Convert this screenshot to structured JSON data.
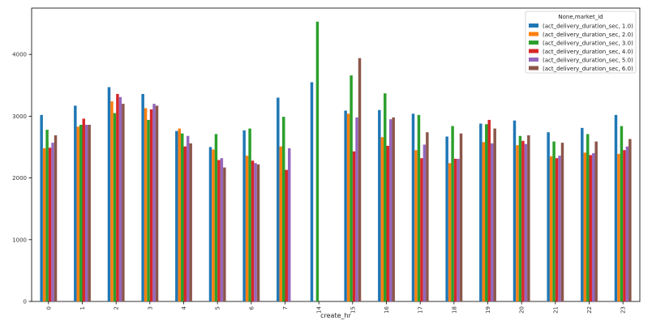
{
  "chart_data": {
    "type": "bar",
    "xlabel": "create_hr",
    "ylabel": "",
    "ylim": [
      0,
      4750
    ],
    "yticks": [
      0,
      1000,
      2000,
      3000,
      4000
    ],
    "grid": false,
    "legend_placement": "top-right",
    "legend_title": "None,market_id",
    "categories": [
      "0",
      "1",
      "2",
      "3",
      "4",
      "5",
      "6",
      "7",
      "14",
      "15",
      "16",
      "17",
      "18",
      "19",
      "20",
      "21",
      "22",
      "23"
    ],
    "series": [
      {
        "name": "(act_delivery_duration_sec, 1.0)",
        "color": "#1f77b4",
        "values": [
          3020,
          3170,
          3470,
          3360,
          2760,
          2500,
          2770,
          3300,
          3550,
          3090,
          3100,
          3040,
          2670,
          2880,
          2930,
          2740,
          2810,
          3020
        ]
      },
      {
        "name": "(act_delivery_duration_sec, 2.0)",
        "color": "#ff7f0e",
        "values": [
          2480,
          2830,
          3240,
          3130,
          2800,
          2460,
          2360,
          2510,
          null,
          3040,
          2660,
          2450,
          2240,
          2580,
          2530,
          2350,
          2410,
          2390
        ]
      },
      {
        "name": "(act_delivery_duration_sec, 3.0)",
        "color": "#2ca02c",
        "values": [
          2780,
          2860,
          3050,
          2940,
          2720,
          2710,
          2800,
          2990,
          4530,
          3660,
          3370,
          3020,
          2840,
          2870,
          2680,
          2590,
          2710,
          2840
        ]
      },
      {
        "name": "(act_delivery_duration_sec, 4.0)",
        "color": "#d62728",
        "values": [
          2490,
          2960,
          3360,
          3110,
          2510,
          2290,
          2280,
          2130,
          null,
          2430,
          2520,
          2320,
          2310,
          2940,
          2600,
          2320,
          2370,
          2450
        ]
      },
      {
        "name": "(act_delivery_duration_sec, 5.0)",
        "color": "#9467bd",
        "values": [
          2570,
          2860,
          3310,
          3200,
          2680,
          2320,
          2240,
          2480,
          null,
          2980,
          2950,
          2540,
          2310,
          2560,
          2550,
          2360,
          2400,
          2510
        ]
      },
      {
        "name": "(act_delivery_duration_sec, 6.0)",
        "color": "#8c564b",
        "values": [
          2690,
          2860,
          3200,
          3170,
          2560,
          2170,
          2220,
          null,
          null,
          3940,
          2980,
          2740,
          2720,
          2800,
          2690,
          2570,
          2590,
          2630
        ]
      }
    ]
  }
}
